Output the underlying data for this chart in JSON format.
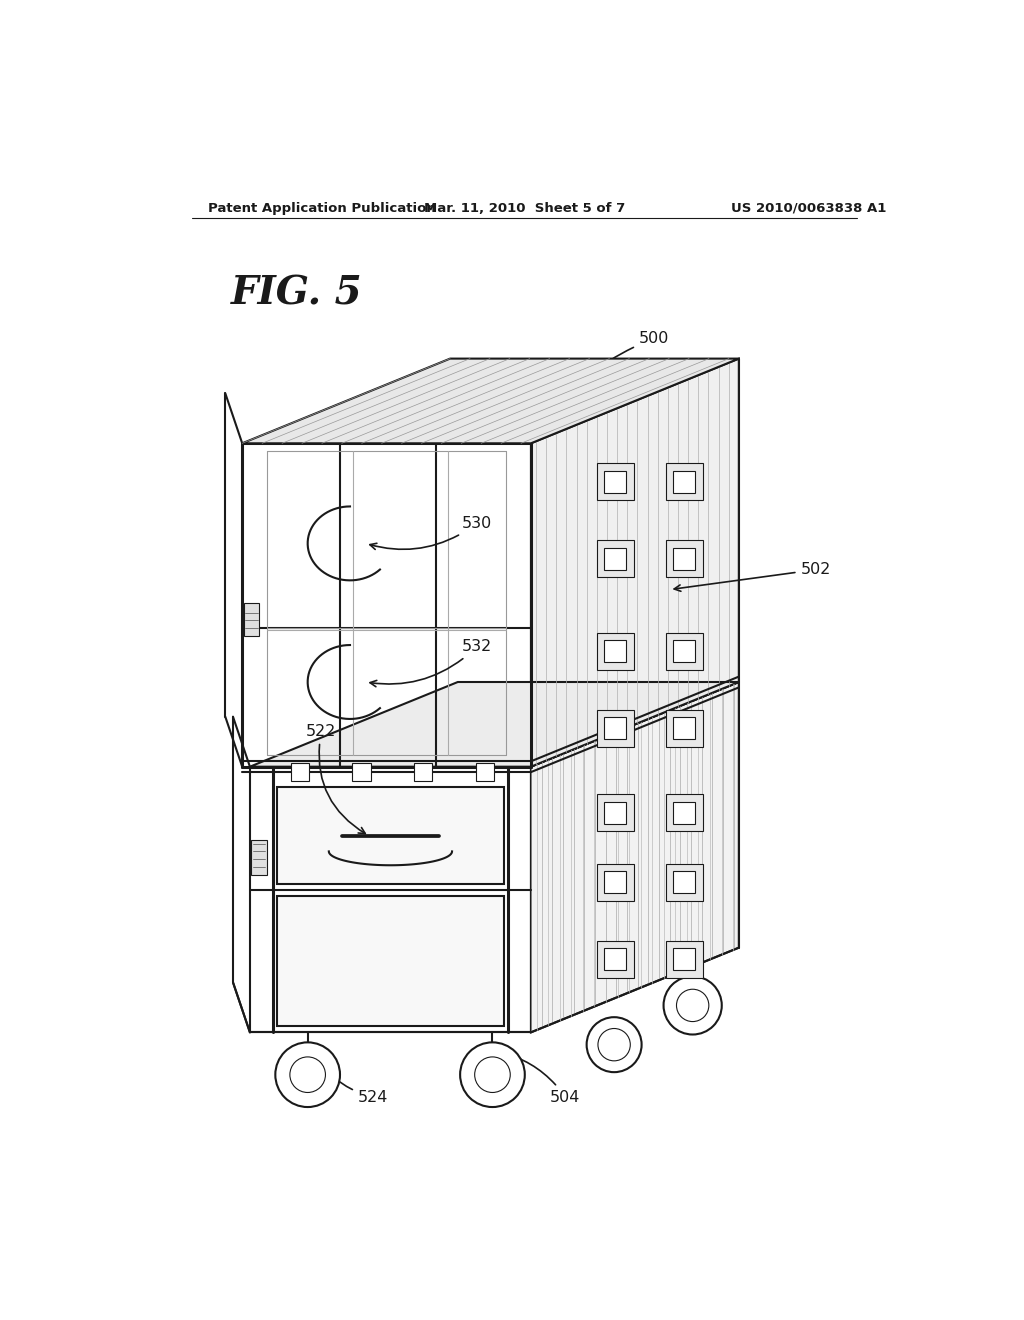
{
  "header_left": "Patent Application Publication",
  "header_mid": "Mar. 11, 2010  Sheet 5 of 7",
  "header_right": "US 2010/0063838 A1",
  "fig_label": "FIG. 5",
  "bg_color": "#ffffff",
  "line_color": "#1a1a1a"
}
